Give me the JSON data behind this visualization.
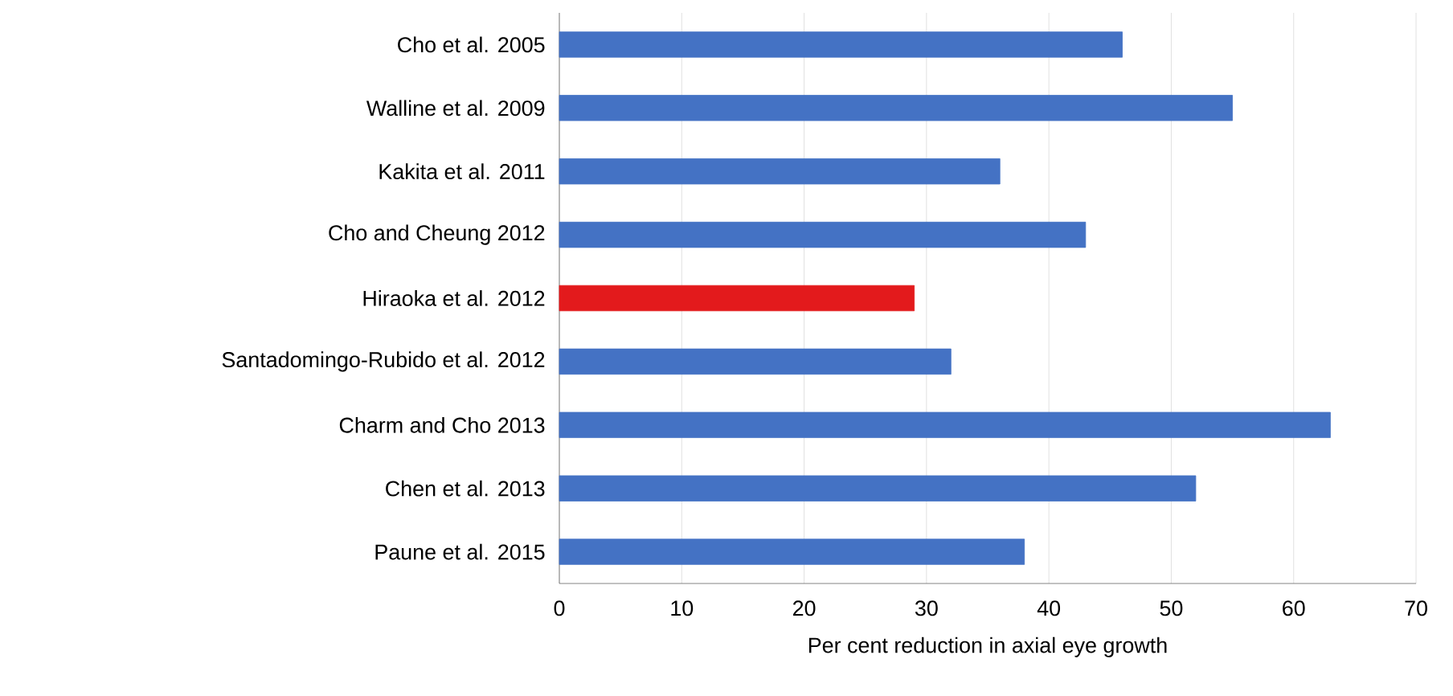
{
  "chart_data": {
    "type": "bar",
    "orientation": "horizontal",
    "xlabel": "Per cent reduction in axial eye growth",
    "categories": [
      "Cho et al. 2005",
      "Walline et al. 2009",
      "Kakita et al. 2011",
      "Cho and Cheung 2012",
      "Hiraoka et al. 2012",
      "Santadomingo-Rubido et al. 2012",
      "Charm and Cho 2013",
      "Chen et al. 2013",
      "Paune et al. 2015"
    ],
    "values": [
      46,
      55,
      36,
      43,
      29,
      32,
      63,
      52,
      38
    ],
    "colors": [
      "#4472c4",
      "#4472c4",
      "#4472c4",
      "#4472c4",
      "#e31a1c",
      "#4472c4",
      "#4472c4",
      "#4472c4",
      "#4472c4"
    ],
    "xlim": [
      0,
      70
    ],
    "xticks": [
      0,
      10,
      20,
      30,
      40,
      50,
      60,
      70
    ],
    "grid": "x"
  }
}
